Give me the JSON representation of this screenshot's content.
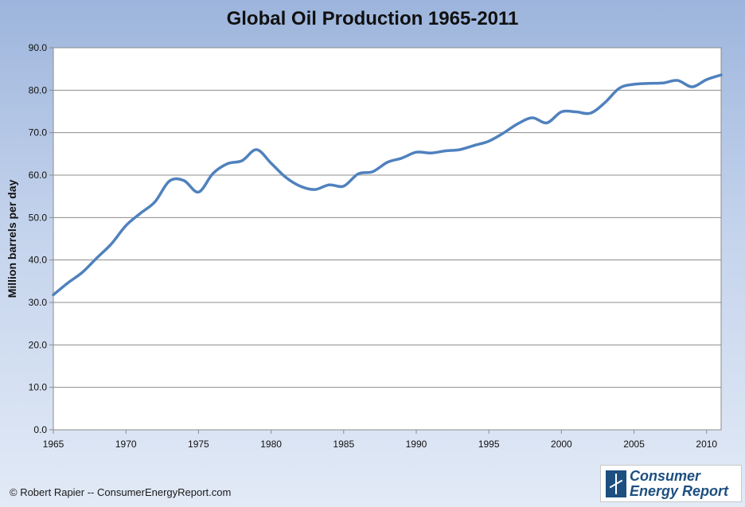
{
  "chart_data": {
    "type": "line",
    "title": "Global Oil Production 1965-2011",
    "xlabel": "",
    "ylabel": "Million barrels per day",
    "xlim": [
      1965,
      2011
    ],
    "ylim": [
      0,
      90
    ],
    "grid": true,
    "legend": "none",
    "x_ticks": [
      "1965",
      "1970",
      "1975",
      "1980",
      "1985",
      "1990",
      "1995",
      "2000",
      "2005",
      "2010"
    ],
    "y_ticks": [
      "0.0",
      "10.0",
      "20.0",
      "30.0",
      "40.0",
      "50.0",
      "60.0",
      "70.0",
      "80.0",
      "90.0"
    ],
    "series": [
      {
        "x": [
          1965,
          1966,
          1967,
          1968,
          1969,
          1970,
          1971,
          1972,
          1973,
          1974,
          1975,
          1976,
          1977,
          1978,
          1979,
          1980,
          1981,
          1982,
          1983,
          1984,
          1985,
          1986,
          1987,
          1988,
          1989,
          1990,
          1991,
          1992,
          1993,
          1994,
          1995,
          1996,
          1997,
          1998,
          1999,
          2000,
          2001,
          2002,
          2003,
          2004,
          2005,
          2006,
          2007,
          2008,
          2009,
          2010,
          2011
        ],
        "values": [
          31.8,
          34.6,
          37.1,
          40.5,
          43.8,
          48.1,
          51.0,
          53.7,
          58.6,
          58.7,
          56.0,
          60.4,
          62.7,
          63.4,
          66.0,
          62.8,
          59.5,
          57.4,
          56.6,
          57.7,
          57.4,
          60.3,
          60.8,
          63.0,
          64.0,
          65.4,
          65.2,
          65.7,
          66.0,
          67.0,
          68.0,
          69.9,
          72.1,
          73.5,
          72.3,
          74.9,
          74.9,
          74.6,
          77.1,
          80.5,
          81.4,
          81.6,
          81.7,
          82.3,
          80.8,
          82.5,
          83.6
        ]
      }
    ],
    "line_color": "#4f81bd"
  },
  "footer": {
    "copyright": "© Robert Rapier -- ConsumerEnergyReport.com"
  },
  "logo": {
    "line1": "Consumer",
    "line2": "Energy Report"
  }
}
